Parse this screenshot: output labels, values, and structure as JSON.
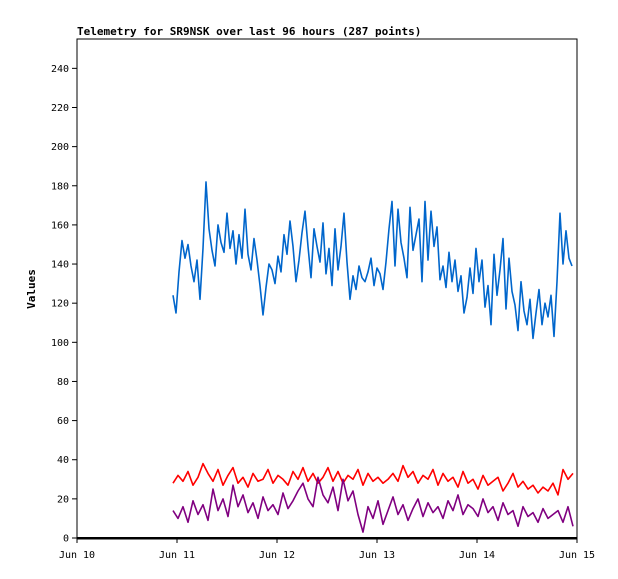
{
  "chart_data": {
    "type": "line",
    "title": "Telemetry for SR9NSK over last 96 hours (287 points)",
    "xlabel": "",
    "ylabel": "Values",
    "xlim": [
      0,
      5
    ],
    "ylim": [
      0,
      255
    ],
    "x_ticks": [
      {
        "value": 0,
        "label": "Jun 10"
      },
      {
        "value": 1,
        "label": "Jun 11"
      },
      {
        "value": 2,
        "label": "Jun 12"
      },
      {
        "value": 3,
        "label": "Jun 13"
      },
      {
        "value": 4,
        "label": "Jun 14"
      },
      {
        "value": 5,
        "label": "Jun 15"
      }
    ],
    "y_ticks": [
      0,
      20,
      40,
      60,
      80,
      100,
      120,
      140,
      160,
      180,
      200,
      220,
      240
    ],
    "grid": false,
    "legend": "none",
    "series": [
      {
        "color": "#0066cc",
        "x": [
          0.96,
          0.99,
          1.02,
          1.05,
          1.08,
          1.11,
          1.14,
          1.17,
          1.2,
          1.23,
          1.26,
          1.29,
          1.32,
          1.35,
          1.38,
          1.41,
          1.44,
          1.47,
          1.5,
          1.53,
          1.56,
          1.59,
          1.62,
          1.65,
          1.68,
          1.71,
          1.74,
          1.77,
          1.8,
          1.83,
          1.86,
          1.89,
          1.92,
          1.95,
          1.98,
          2.01,
          2.04,
          2.07,
          2.1,
          2.13,
          2.16,
          2.19,
          2.22,
          2.25,
          2.28,
          2.31,
          2.34,
          2.37,
          2.4,
          2.43,
          2.46,
          2.49,
          2.52,
          2.55,
          2.58,
          2.61,
          2.64,
          2.67,
          2.7,
          2.73,
          2.76,
          2.79,
          2.82,
          2.85,
          2.88,
          2.91,
          2.94,
          2.97,
          3.0,
          3.03,
          3.06,
          3.09,
          3.12,
          3.15,
          3.18,
          3.21,
          3.24,
          3.27,
          3.3,
          3.33,
          3.36,
          3.39,
          3.42,
          3.45,
          3.48,
          3.51,
          3.54,
          3.57,
          3.6,
          3.63,
          3.66,
          3.69,
          3.72,
          3.75,
          3.78,
          3.81,
          3.84,
          3.87,
          3.9,
          3.93,
          3.96,
          3.99,
          4.02,
          4.05,
          4.08,
          4.11,
          4.14,
          4.17,
          4.2,
          4.23,
          4.26,
          4.29,
          4.32,
          4.35,
          4.38,
          4.41,
          4.44,
          4.47,
          4.5,
          4.53,
          4.56,
          4.59,
          4.62,
          4.65,
          4.68,
          4.71,
          4.74,
          4.77,
          4.8,
          4.83,
          4.86,
          4.89,
          4.92,
          4.95
        ],
        "values": [
          124,
          115,
          136,
          152,
          143,
          150,
          139,
          131,
          142,
          122,
          148,
          182,
          158,
          147,
          139,
          160,
          151,
          146,
          166,
          148,
          157,
          140,
          155,
          143,
          168,
          145,
          137,
          153,
          142,
          129,
          114,
          128,
          140,
          137,
          130,
          144,
          136,
          155,
          145,
          162,
          149,
          131,
          142,
          156,
          167,
          149,
          133,
          158,
          149,
          141,
          161,
          135,
          148,
          129,
          158,
          137,
          149,
          166,
          141,
          122,
          134,
          127,
          139,
          133,
          131,
          136,
          143,
          129,
          138,
          135,
          127,
          141,
          158,
          172,
          139,
          168,
          151,
          143,
          133,
          169,
          147,
          155,
          163,
          131,
          172,
          142,
          167,
          149,
          159,
          132,
          139,
          128,
          146,
          131,
          142,
          126,
          134,
          115,
          123,
          138,
          125,
          148,
          131,
          142,
          118,
          129,
          109,
          145,
          124,
          137,
          153,
          117,
          143,
          126,
          119,
          106,
          131,
          116,
          109,
          122,
          102,
          115,
          127,
          109,
          120,
          113,
          124,
          103,
          131,
          166,
          140,
          157,
          143,
          139
        ]
      },
      {
        "color": "#ff0000",
        "x": [
          0.96,
          1.01,
          1.06,
          1.11,
          1.16,
          1.21,
          1.26,
          1.31,
          1.36,
          1.41,
          1.46,
          1.51,
          1.56,
          1.61,
          1.66,
          1.71,
          1.76,
          1.81,
          1.86,
          1.91,
          1.96,
          2.01,
          2.06,
          2.11,
          2.16,
          2.21,
          2.26,
          2.31,
          2.36,
          2.41,
          2.46,
          2.51,
          2.56,
          2.61,
          2.66,
          2.71,
          2.76,
          2.81,
          2.86,
          2.91,
          2.96,
          3.01,
          3.06,
          3.11,
          3.16,
          3.21,
          3.26,
          3.31,
          3.36,
          3.41,
          3.46,
          3.51,
          3.56,
          3.61,
          3.66,
          3.71,
          3.76,
          3.81,
          3.86,
          3.91,
          3.96,
          4.01,
          4.06,
          4.11,
          4.16,
          4.21,
          4.26,
          4.31,
          4.36,
          4.41,
          4.46,
          4.51,
          4.56,
          4.61,
          4.66,
          4.71,
          4.76,
          4.81,
          4.86,
          4.91,
          4.96
        ],
        "values": [
          28,
          32,
          29,
          34,
          27,
          31,
          38,
          33,
          29,
          35,
          27,
          32,
          36,
          28,
          31,
          26,
          33,
          29,
          30,
          35,
          28,
          32,
          30,
          27,
          34,
          30,
          36,
          29,
          33,
          28,
          31,
          36,
          29,
          34,
          28,
          32,
          30,
          35,
          27,
          33,
          29,
          31,
          28,
          30,
          33,
          29,
          37,
          31,
          34,
          28,
          32,
          30,
          35,
          27,
          33,
          29,
          31,
          26,
          34,
          28,
          30,
          25,
          32,
          27,
          29,
          31,
          24,
          28,
          33,
          26,
          29,
          25,
          27,
          23,
          26,
          24,
          28,
          22,
          35,
          30,
          33
        ]
      },
      {
        "color": "#800080",
        "x": [
          0.96,
          1.01,
          1.06,
          1.11,
          1.16,
          1.21,
          1.26,
          1.31,
          1.36,
          1.41,
          1.46,
          1.51,
          1.56,
          1.61,
          1.66,
          1.71,
          1.76,
          1.81,
          1.86,
          1.91,
          1.96,
          2.01,
          2.06,
          2.11,
          2.16,
          2.21,
          2.26,
          2.31,
          2.36,
          2.41,
          2.46,
          2.51,
          2.56,
          2.61,
          2.66,
          2.71,
          2.76,
          2.81,
          2.86,
          2.91,
          2.96,
          3.01,
          3.06,
          3.11,
          3.16,
          3.21,
          3.26,
          3.31,
          3.36,
          3.41,
          3.46,
          3.51,
          3.56,
          3.61,
          3.66,
          3.71,
          3.76,
          3.81,
          3.86,
          3.91,
          3.96,
          4.01,
          4.06,
          4.11,
          4.16,
          4.21,
          4.26,
          4.31,
          4.36,
          4.41,
          4.46,
          4.51,
          4.56,
          4.61,
          4.66,
          4.71,
          4.76,
          4.81,
          4.86,
          4.91,
          4.96
        ],
        "values": [
          14,
          10,
          16,
          8,
          19,
          12,
          17,
          9,
          25,
          14,
          20,
          11,
          27,
          16,
          22,
          13,
          18,
          10,
          21,
          14,
          17,
          12,
          23,
          15,
          19,
          24,
          28,
          20,
          16,
          31,
          22,
          18,
          26,
          14,
          30,
          19,
          24,
          12,
          3,
          16,
          10,
          19,
          7,
          14,
          21,
          12,
          17,
          9,
          15,
          20,
          11,
          18,
          13,
          16,
          10,
          19,
          14,
          22,
          12,
          17,
          15,
          11,
          20,
          13,
          16,
          9,
          18,
          12,
          14,
          6,
          16,
          11,
          13,
          8,
          15,
          10,
          12,
          14,
          8,
          16,
          6
        ]
      }
    ]
  }
}
